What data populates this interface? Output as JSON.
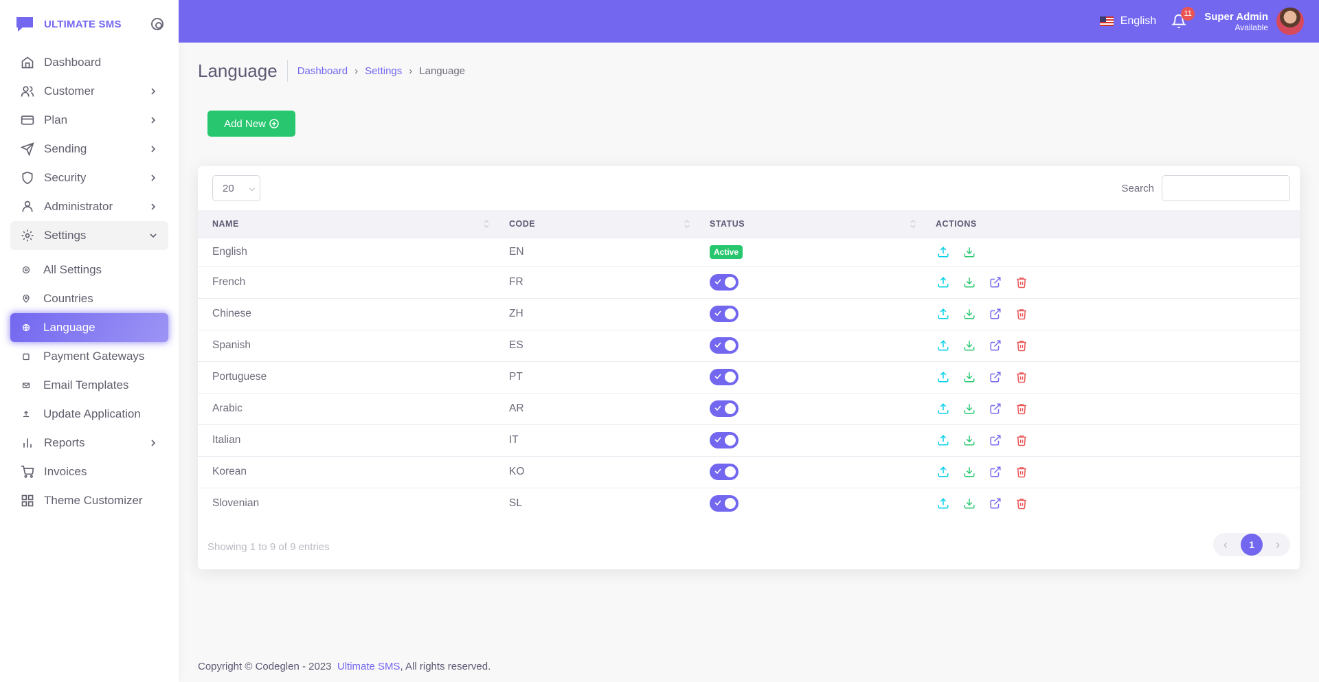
{
  "brand": {
    "name": "ULTIMATE SMS"
  },
  "colors": {
    "primary": "#7367f0",
    "success": "#28c76f",
    "danger": "#ea5455",
    "info": "#00cfe8"
  },
  "sidebar": {
    "items": [
      {
        "label": "Dashboard",
        "icon": "home-icon"
      },
      {
        "label": "Customer",
        "icon": "users-icon"
      },
      {
        "label": "Plan",
        "icon": "credit-card-icon"
      },
      {
        "label": "Sending",
        "icon": "send-icon"
      },
      {
        "label": "Security",
        "icon": "shield-icon"
      },
      {
        "label": "Administrator",
        "icon": "user-icon"
      },
      {
        "label": "Settings",
        "icon": "settings-icon"
      },
      {
        "label": "Reports",
        "icon": "bar-chart-icon"
      },
      {
        "label": "Invoices",
        "icon": "shopping-cart-icon"
      },
      {
        "label": "Theme Customizer",
        "icon": "grid-icon"
      }
    ],
    "settings_sub": [
      {
        "label": "All Settings",
        "icon": "settings-small-icon"
      },
      {
        "label": "Countries",
        "icon": "map-pin-icon"
      },
      {
        "label": "Language",
        "icon": "globe-icon"
      },
      {
        "label": "Payment Gateways",
        "icon": "wallet-icon"
      },
      {
        "label": "Email Templates",
        "icon": "mail-icon"
      },
      {
        "label": "Update Application",
        "icon": "upload-icon"
      }
    ]
  },
  "header": {
    "language": "English",
    "notification_count": "11",
    "user_name": "Super Admin",
    "user_status": "Available"
  },
  "page": {
    "title": "Language",
    "breadcrumb": [
      "Dashboard",
      "Settings",
      "Language"
    ],
    "add_button": "Add New"
  },
  "table": {
    "page_length": "20",
    "search_label": "Search",
    "search_value": "",
    "columns": [
      "NAME",
      "CODE",
      "STATUS",
      "ACTIONS"
    ],
    "rows": [
      {
        "name": "English",
        "code": "EN",
        "status": "Active"
      },
      {
        "name": "French",
        "code": "FR",
        "status": "on"
      },
      {
        "name": "Chinese",
        "code": "ZH",
        "status": "on"
      },
      {
        "name": "Spanish",
        "code": "ES",
        "status": "on"
      },
      {
        "name": "Portuguese",
        "code": "PT",
        "status": "on"
      },
      {
        "name": "Arabic",
        "code": "AR",
        "status": "on"
      },
      {
        "name": "Italian",
        "code": "IT",
        "status": "on"
      },
      {
        "name": "Korean",
        "code": "KO",
        "status": "on"
      },
      {
        "name": "Slovenian",
        "code": "SL",
        "status": "on"
      }
    ],
    "info": "Showing 1 to 9 of 9 entries",
    "current_page": "1"
  },
  "footer": {
    "prefix": "Copyright © Codeglen - 2023",
    "link": "Ultimate SMS",
    "suffix": ", All rights reserved."
  }
}
